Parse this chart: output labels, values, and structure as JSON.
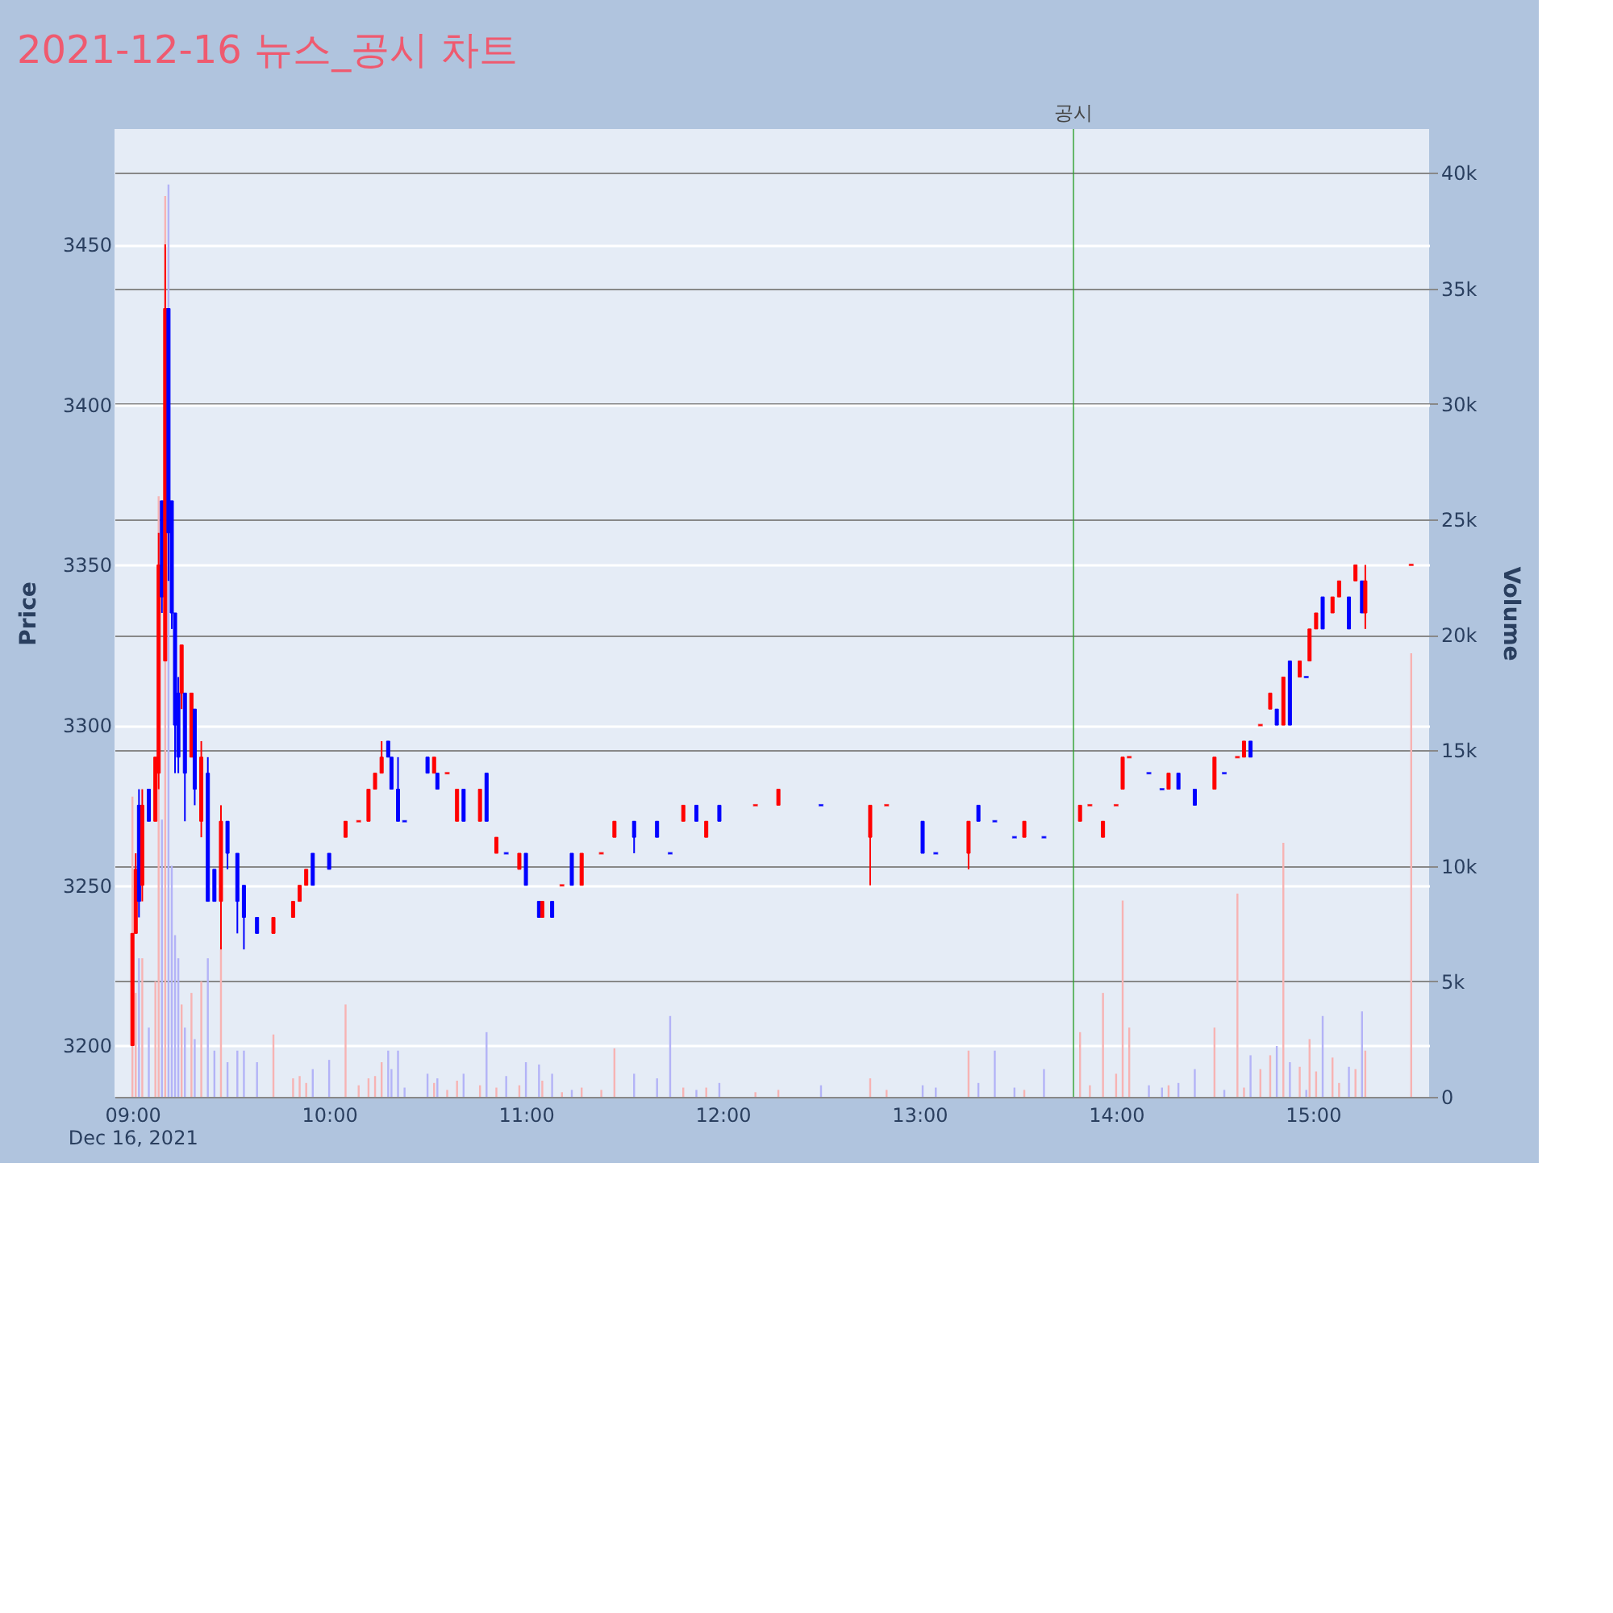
{
  "chart_data": {
    "type": "candlestick",
    "title": "2021-12-16 뉴스_공시 차트",
    "ylabel": "Price",
    "y2label": "Volume",
    "x": [
      "2021-12-16T09:00",
      "2021-12-16T09:01",
      "2021-12-16T09:02",
      "2021-12-16T09:03",
      "2021-12-16T09:05",
      "2021-12-16T09:07",
      "2021-12-16T09:08",
      "2021-12-16T09:09",
      "2021-12-16T09:10",
      "2021-12-16T09:11",
      "2021-12-16T09:12",
      "2021-12-16T09:13",
      "2021-12-16T09:14",
      "2021-12-16T09:15",
      "2021-12-16T09:16",
      "2021-12-16T09:18",
      "2021-12-16T09:19",
      "2021-12-16T09:21",
      "2021-12-16T09:23",
      "2021-12-16T09:25",
      "2021-12-16T09:27",
      "2021-12-16T09:29",
      "2021-12-16T09:32",
      "2021-12-16T09:34",
      "2021-12-16T09:38",
      "2021-12-16T09:43",
      "2021-12-16T09:49",
      "2021-12-16T09:51",
      "2021-12-16T09:53",
      "2021-12-16T09:55",
      "2021-12-16T10:00",
      "2021-12-16T10:05",
      "2021-12-16T10:09",
      "2021-12-16T10:12",
      "2021-12-16T10:14",
      "2021-12-16T10:16",
      "2021-12-16T10:18",
      "2021-12-16T10:19",
      "2021-12-16T10:21",
      "2021-12-16T10:23",
      "2021-12-16T10:30",
      "2021-12-16T10:32",
      "2021-12-16T10:33",
      "2021-12-16T10:36",
      "2021-12-16T10:39",
      "2021-12-16T10:41",
      "2021-12-16T10:46",
      "2021-12-16T10:48",
      "2021-12-16T10:51",
      "2021-12-16T10:54",
      "2021-12-16T10:58",
      "2021-12-16T11:00",
      "2021-12-16T11:04",
      "2021-12-16T11:05",
      "2021-12-16T11:08",
      "2021-12-16T11:11",
      "2021-12-16T11:14",
      "2021-12-16T11:17",
      "2021-12-16T11:23",
      "2021-12-16T11:27",
      "2021-12-16T11:33",
      "2021-12-16T11:40",
      "2021-12-16T11:44",
      "2021-12-16T11:48",
      "2021-12-16T11:52",
      "2021-12-16T11:55",
      "2021-12-16T11:59",
      "2021-12-16T12:10",
      "2021-12-16T12:17",
      "2021-12-16T12:30",
      "2021-12-16T12:45",
      "2021-12-16T12:50",
      "2021-12-16T13:01",
      "2021-12-16T13:05",
      "2021-12-16T13:15",
      "2021-12-16T13:18",
      "2021-12-16T13:23",
      "2021-12-16T13:29",
      "2021-12-16T13:32",
      "2021-12-16T13:38",
      "2021-12-16T13:49",
      "2021-12-16T13:52",
      "2021-12-16T13:56",
      "2021-12-16T14:00",
      "2021-12-16T14:02",
      "2021-12-16T14:04",
      "2021-12-16T14:10",
      "2021-12-16T14:14",
      "2021-12-16T14:16",
      "2021-12-16T14:19",
      "2021-12-16T14:24",
      "2021-12-16T14:30",
      "2021-12-16T14:33",
      "2021-12-16T14:37",
      "2021-12-16T14:39",
      "2021-12-16T14:41",
      "2021-12-16T14:44",
      "2021-12-16T14:47",
      "2021-12-16T14:49",
      "2021-12-16T14:51",
      "2021-12-16T14:53",
      "2021-12-16T14:56",
      "2021-12-16T14:58",
      "2021-12-16T14:59",
      "2021-12-16T15:01",
      "2021-12-16T15:03",
      "2021-12-16T15:06",
      "2021-12-16T15:08",
      "2021-12-16T15:11",
      "2021-12-16T15:13",
      "2021-12-16T15:15",
      "2021-12-16T15:16",
      "2021-12-16T15:30"
    ],
    "ohlc": [
      [
        3200,
        3235,
        3200,
        3235
      ],
      [
        3235,
        3260,
        3235,
        3255
      ],
      [
        3275,
        3280,
        3240,
        3245
      ],
      [
        3250,
        3280,
        3245,
        3275
      ],
      [
        3280,
        3280,
        3270,
        3270
      ],
      [
        3270,
        3290,
        3270,
        3290
      ],
      [
        3285,
        3360,
        3280,
        3350
      ],
      [
        3370,
        3370,
        3335,
        3340
      ],
      [
        3320,
        3450,
        3320,
        3430
      ],
      [
        3430,
        3430,
        3345,
        3360
      ],
      [
        3370,
        3370,
        3330,
        3335
      ],
      [
        3335,
        3335,
        3285,
        3300
      ],
      [
        3310,
        3315,
        3285,
        3290
      ],
      [
        3310,
        3325,
        3305,
        3325
      ],
      [
        3310,
        3310,
        3270,
        3285
      ],
      [
        3290,
        3310,
        3290,
        3310
      ],
      [
        3305,
        3305,
        3275,
        3280
      ],
      [
        3270,
        3295,
        3265,
        3290
      ],
      [
        3285,
        3290,
        3245,
        3245
      ],
      [
        3255,
        3255,
        3245,
        3245
      ],
      [
        3245,
        3275,
        3230,
        3270
      ],
      [
        3270,
        3270,
        3255,
        3260
      ],
      [
        3260,
        3260,
        3235,
        3245
      ],
      [
        3250,
        3250,
        3230,
        3240
      ],
      [
        3240,
        3240,
        3235,
        3235
      ],
      [
        3235,
        3240,
        3235,
        3240
      ],
      [
        3240,
        3245,
        3240,
        3245
      ],
      [
        3245,
        3250,
        3245,
        3250
      ],
      [
        3250,
        3255,
        3250,
        3255
      ],
      [
        3260,
        3260,
        3250,
        3250
      ],
      [
        3260,
        3260,
        3255,
        3255
      ],
      [
        3265,
        3270,
        3265,
        3270
      ],
      [
        3270,
        3270,
        3270,
        3270
      ],
      [
        3270,
        3280,
        3270,
        3280
      ],
      [
        3280,
        3285,
        3280,
        3285
      ],
      [
        3285,
        3295,
        3285,
        3290
      ],
      [
        3295,
        3295,
        3290,
        3290
      ],
      [
        3290,
        3290,
        3280,
        3280
      ],
      [
        3280,
        3290,
        3270,
        3270
      ],
      [
        3270,
        3270,
        3270,
        3270
      ],
      [
        3290,
        3290,
        3285,
        3285
      ],
      [
        3285,
        3290,
        3285,
        3290
      ],
      [
        3285,
        3285,
        3280,
        3280
      ],
      [
        3285,
        3285,
        3285,
        3285
      ],
      [
        3270,
        3280,
        3270,
        3280
      ],
      [
        3280,
        3280,
        3270,
        3270
      ],
      [
        3270,
        3280,
        3270,
        3280
      ],
      [
        3285,
        3285,
        3270,
        3270
      ],
      [
        3260,
        3265,
        3260,
        3265
      ],
      [
        3260,
        3260,
        3260,
        3260
      ],
      [
        3255,
        3260,
        3255,
        3260
      ],
      [
        3260,
        3260,
        3250,
        3250
      ],
      [
        3245,
        3245,
        3240,
        3240
      ],
      [
        3240,
        3245,
        3240,
        3245
      ],
      [
        3245,
        3245,
        3240,
        3240
      ],
      [
        3250,
        3250,
        3250,
        3250
      ],
      [
        3260,
        3260,
        3250,
        3250
      ],
      [
        3250,
        3260,
        3250,
        3260
      ],
      [
        3260,
        3260,
        3260,
        3260
      ],
      [
        3265,
        3270,
        3265,
        3270
      ],
      [
        3270,
        3270,
        3260,
        3265
      ],
      [
        3270,
        3270,
        3265,
        3265
      ],
      [
        3260,
        3260,
        3260,
        3260
      ],
      [
        3270,
        3275,
        3270,
        3275
      ],
      [
        3275,
        3275,
        3270,
        3270
      ],
      [
        3265,
        3270,
        3265,
        3270
      ],
      [
        3275,
        3275,
        3270,
        3270
      ],
      [
        3275,
        3275,
        3275,
        3275
      ],
      [
        3275,
        3280,
        3275,
        3280
      ],
      [
        3275,
        3275,
        3275,
        3275
      ],
      [
        3265,
        3275,
        3250,
        3275
      ],
      [
        3275,
        3275,
        3275,
        3275
      ],
      [
        3270,
        3270,
        3260,
        3260
      ],
      [
        3260,
        3260,
        3260,
        3260
      ],
      [
        3260,
        3270,
        3255,
        3270
      ],
      [
        3275,
        3275,
        3270,
        3270
      ],
      [
        3270,
        3270,
        3270,
        3270
      ],
      [
        3265,
        3265,
        3265,
        3265
      ],
      [
        3265,
        3270,
        3265,
        3270
      ],
      [
        3265,
        3265,
        3265,
        3265
      ],
      [
        3270,
        3275,
        3270,
        3275
      ],
      [
        3275,
        3275,
        3275,
        3275
      ],
      [
        3265,
        3270,
        3265,
        3270
      ],
      [
        3275,
        3275,
        3275,
        3275
      ],
      [
        3280,
        3290,
        3280,
        3290
      ],
      [
        3290,
        3290,
        3290,
        3290
      ],
      [
        3285,
        3285,
        3285,
        3285
      ],
      [
        3280,
        3280,
        3280,
        3280
      ],
      [
        3280,
        3285,
        3280,
        3285
      ],
      [
        3285,
        3285,
        3280,
        3280
      ],
      [
        3280,
        3280,
        3275,
        3275
      ],
      [
        3280,
        3290,
        3280,
        3290
      ],
      [
        3285,
        3285,
        3285,
        3285
      ],
      [
        3290,
        3290,
        3290,
        3290
      ],
      [
        3290,
        3295,
        3290,
        3295
      ],
      [
        3295,
        3295,
        3290,
        3290
      ],
      [
        3300,
        3300,
        3300,
        3300
      ],
      [
        3305,
        3310,
        3305,
        3310
      ],
      [
        3305,
        3305,
        3300,
        3300
      ],
      [
        3300,
        3315,
        3300,
        3315
      ],
      [
        3320,
        3320,
        3300,
        3300
      ],
      [
        3315,
        3320,
        3315,
        3320
      ],
      [
        3315,
        3315,
        3315,
        3315
      ],
      [
        3320,
        3330,
        3320,
        3330
      ],
      [
        3330,
        3335,
        3330,
        3335
      ],
      [
        3340,
        3340,
        3330,
        3330
      ],
      [
        3335,
        3340,
        3335,
        3340
      ],
      [
        3340,
        3345,
        3340,
        3345
      ],
      [
        3340,
        3340,
        3330,
        3330
      ],
      [
        3345,
        3350,
        3345,
        3350
      ],
      [
        3345,
        3345,
        3335,
        3335
      ],
      [
        3335,
        3350,
        3330,
        3345
      ],
      [
        3350,
        3350,
        3350,
        3350
      ]
    ],
    "colors": [
      "#ff0000",
      "#ff0000",
      "#0000ff",
      "#ff0000",
      "#0000ff",
      "#ff0000",
      "#ff0000",
      "#0000ff",
      "#ff0000",
      "#0000ff",
      "#0000ff",
      "#0000ff",
      "#0000ff",
      "#ff0000",
      "#0000ff",
      "#ff0000",
      "#0000ff",
      "#ff0000",
      "#0000ff",
      "#0000ff",
      "#ff0000",
      "#0000ff",
      "#0000ff",
      "#0000ff",
      "#0000ff",
      "#ff0000",
      "#ff0000",
      "#ff0000",
      "#ff0000",
      "#0000ff",
      "#0000ff",
      "#ff0000",
      "#ff0000",
      "#ff0000",
      "#ff0000",
      "#ff0000",
      "#0000ff",
      "#0000ff",
      "#0000ff",
      "#0000ff",
      "#0000ff",
      "#ff0000",
      "#0000ff",
      "#ff0000",
      "#ff0000",
      "#0000ff",
      "#ff0000",
      "#0000ff",
      "#ff0000",
      "#0000ff",
      "#ff0000",
      "#0000ff",
      "#0000ff",
      "#ff0000",
      "#0000ff",
      "#ff0000",
      "#0000ff",
      "#ff0000",
      "#ff0000",
      "#ff0000",
      "#0000ff",
      "#0000ff",
      "#0000ff",
      "#ff0000",
      "#0000ff",
      "#ff0000",
      "#0000ff",
      "#ff0000",
      "#ff0000",
      "#0000ff",
      "#ff0000",
      "#ff0000",
      "#0000ff",
      "#0000ff",
      "#ff0000",
      "#0000ff",
      "#0000ff",
      "#0000ff",
      "#ff0000",
      "#0000ff",
      "#ff0000",
      "#ff0000",
      "#ff0000",
      "#ff0000",
      "#ff0000",
      "#ff0000",
      "#0000ff",
      "#0000ff",
      "#ff0000",
      "#0000ff",
      "#0000ff",
      "#ff0000",
      "#0000ff",
      "#ff0000",
      "#ff0000",
      "#0000ff",
      "#ff0000",
      "#ff0000",
      "#0000ff",
      "#ff0000",
      "#0000ff",
      "#ff0000",
      "#0000ff",
      "#ff0000",
      "#ff0000",
      "#0000ff",
      "#ff0000",
      "#ff0000",
      "#0000ff",
      "#ff0000",
      "#0000ff",
      "#ff0000",
      "#ff0000"
    ],
    "series": [
      {
        "type": "bar",
        "axis": "y2",
        "values": [
          13000,
          4500,
          6000,
          6000,
          3000,
          5000,
          26000,
          12000,
          39000,
          39500,
          10000,
          7000,
          6000,
          4000,
          3000,
          4500,
          2500,
          5000,
          6000,
          2000,
          6500,
          1500,
          2000,
          2000,
          1500,
          2700,
          800,
          900,
          600,
          1200,
          1600,
          4000,
          500,
          800,
          900,
          1500,
          2000,
          1200,
          2000,
          400,
          1000,
          600,
          800,
          300,
          700,
          1000,
          500,
          2800,
          400,
          900,
          500,
          1500,
          1400,
          700,
          1000,
          200,
          300,
          400,
          300,
          2100,
          1000,
          800,
          3500,
          400,
          300,
          400,
          600,
          200,
          300,
          500,
          800,
          300,
          500,
          400,
          2000,
          600,
          2000,
          400,
          300,
          1200,
          2800,
          500,
          4500,
          1000,
          8500,
          3000,
          500,
          400,
          500,
          600,
          1200,
          3000,
          300,
          8800,
          400,
          1800,
          1200,
          1800,
          2200,
          11000,
          1500,
          1300,
          300,
          2500,
          1100,
          3500,
          1700,
          600,
          1300,
          1200,
          3700,
          2000,
          19200
        ],
        "colors": [
          "#f7b3b3",
          "#f7b3b3",
          "#b3b3f7",
          "#f7b3b3",
          "#b3b3f7",
          "#f7b3b3",
          "#f7b3b3",
          "#b3b3f7",
          "#f7b3b3",
          "#b3b3f7",
          "#b3b3f7",
          "#b3b3f7",
          "#b3b3f7",
          "#f7b3b3",
          "#b3b3f7",
          "#f7b3b3",
          "#b3b3f7",
          "#f7b3b3",
          "#b3b3f7",
          "#b3b3f7",
          "#f7b3b3",
          "#b3b3f7",
          "#b3b3f7",
          "#b3b3f7",
          "#b3b3f7",
          "#f7b3b3",
          "#f7b3b3",
          "#f7b3b3",
          "#f7b3b3",
          "#b3b3f7",
          "#b3b3f7",
          "#f7b3b3",
          "#f7b3b3",
          "#f7b3b3",
          "#f7b3b3",
          "#f7b3b3",
          "#b3b3f7",
          "#b3b3f7",
          "#b3b3f7",
          "#b3b3f7",
          "#b3b3f7",
          "#f7b3b3",
          "#b3b3f7",
          "#f7b3b3",
          "#f7b3b3",
          "#b3b3f7",
          "#f7b3b3",
          "#b3b3f7",
          "#f7b3b3",
          "#b3b3f7",
          "#f7b3b3",
          "#b3b3f7",
          "#b3b3f7",
          "#f7b3b3",
          "#b3b3f7",
          "#f7b3b3",
          "#b3b3f7",
          "#f7b3b3",
          "#f7b3b3",
          "#f7b3b3",
          "#b3b3f7",
          "#b3b3f7",
          "#b3b3f7",
          "#f7b3b3",
          "#b3b3f7",
          "#f7b3b3",
          "#b3b3f7",
          "#f7b3b3",
          "#f7b3b3",
          "#b3b3f7",
          "#f7b3b3",
          "#f7b3b3",
          "#b3b3f7",
          "#b3b3f7",
          "#f7b3b3",
          "#b3b3f7",
          "#b3b3f7",
          "#b3b3f7",
          "#f7b3b3",
          "#b3b3f7",
          "#f7b3b3",
          "#f7b3b3",
          "#f7b3b3",
          "#f7b3b3",
          "#f7b3b3",
          "#f7b3b3",
          "#b3b3f7",
          "#b3b3f7",
          "#f7b3b3",
          "#b3b3f7",
          "#b3b3f7",
          "#f7b3b3",
          "#b3b3f7",
          "#f7b3b3",
          "#f7b3b3",
          "#b3b3f7",
          "#f7b3b3",
          "#f7b3b3",
          "#b3b3f7",
          "#f7b3b3",
          "#b3b3f7",
          "#f7b3b3",
          "#b3b3f7",
          "#f7b3b3",
          "#f7b3b3",
          "#b3b3f7",
          "#f7b3b3",
          "#f7b3b3",
          "#b3b3f7",
          "#f7b3b3",
          "#b3b3f7",
          "#f7b3b3",
          "#f7b3b3"
        ]
      }
    ],
    "xlim": [
      "2021-12-16T08:57",
      "2021-12-16T15:33"
    ],
    "xticks": [
      {
        "value": "2021-12-16T09:00",
        "label": "09:00\nDec 16, 2021"
      },
      {
        "value": "2021-12-16T10:00",
        "label": "10:00"
      },
      {
        "value": "2021-12-16T11:00",
        "label": "11:00"
      },
      {
        "value": "2021-12-16T12:00",
        "label": "12:00"
      },
      {
        "value": "2021-12-16T13:00",
        "label": "13:00"
      },
      {
        "value": "2021-12-16T14:00",
        "label": "14:00"
      },
      {
        "value": "2021-12-16T15:00",
        "label": "15:00"
      }
    ],
    "ylim": [
      3184,
      3486
    ],
    "yticks": [
      3200,
      3250,
      3300,
      3350,
      3400,
      3450
    ],
    "y2lim": [
      0,
      41900
    ],
    "y2ticks": [
      0,
      {
        "value": 5000,
        "label": "5k"
      },
      {
        "value": 10000,
        "label": "10k"
      },
      {
        "value": 15000,
        "label": "15k"
      },
      {
        "value": 20000,
        "label": "20k"
      },
      {
        "value": 25000,
        "label": "25k"
      },
      {
        "value": 30000,
        "label": "30k"
      },
      {
        "value": 35000,
        "label": "35k"
      },
      {
        "value": 40000,
        "label": "40k"
      }
    ],
    "ref_lines": [
      {
        "axis": "x",
        "value": "2021-12-16T13:47",
        "label": "공시",
        "color": "#2ca02c"
      }
    ],
    "grid": "y"
  }
}
